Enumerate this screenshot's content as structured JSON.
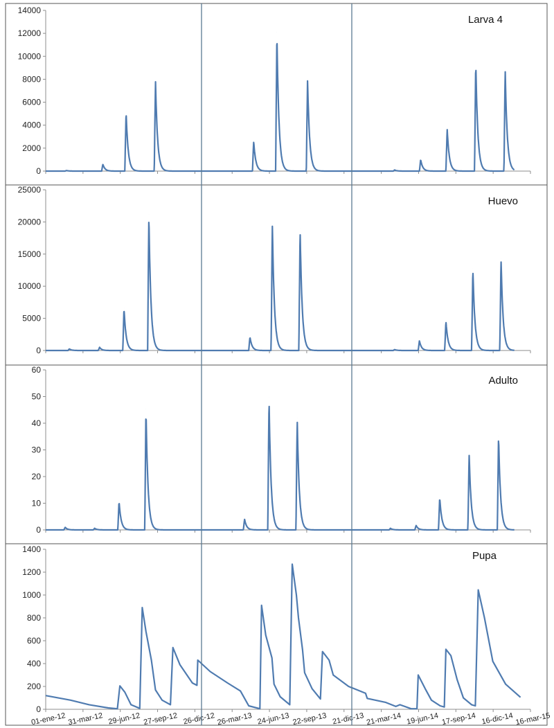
{
  "chart_data": [
    {
      "type": "line",
      "title": "Larva 4",
      "ylim": [
        0,
        14000
      ],
      "yticks": [
        0,
        2000,
        4000,
        6000,
        8000,
        10000,
        12000,
        14000
      ],
      "grid": false,
      "peaks": [
        {
          "x": "2012-02-20",
          "y": 50
        },
        {
          "x": "2012-05-18",
          "y": 600
        },
        {
          "x": "2012-07-13",
          "y": 5200
        },
        {
          "x": "2012-09-22",
          "y": 7900
        },
        {
          "x": "2013-05-17",
          "y": 2600
        },
        {
          "x": "2013-07-12",
          "y": 12100
        },
        {
          "x": "2013-09-24",
          "y": 8000
        },
        {
          "x": "2014-04-22",
          "y": 100
        },
        {
          "x": "2014-06-24",
          "y": 1000
        },
        {
          "x": "2014-08-27",
          "y": 3700
        },
        {
          "x": "2014-11-04",
          "y": 9500
        },
        {
          "x": "2015-01-14",
          "y": 8800
        }
      ]
    },
    {
      "type": "line",
      "title": "Huevo",
      "ylim": [
        0,
        25000
      ],
      "yticks": [
        0,
        5000,
        10000,
        15000,
        20000,
        25000
      ],
      "grid": false,
      "peaks": [
        {
          "x": "2012-02-27",
          "y": 250
        },
        {
          "x": "2012-05-10",
          "y": 500
        },
        {
          "x": "2012-07-08",
          "y": 6600
        },
        {
          "x": "2012-09-06",
          "y": 21200
        },
        {
          "x": "2013-05-08",
          "y": 2100
        },
        {
          "x": "2013-07-01",
          "y": 19800
        },
        {
          "x": "2013-09-06",
          "y": 19000
        },
        {
          "x": "2014-04-22",
          "y": 150
        },
        {
          "x": "2014-06-21",
          "y": 1500
        },
        {
          "x": "2014-08-24",
          "y": 4600
        },
        {
          "x": "2014-10-28",
          "y": 12800
        },
        {
          "x": "2015-01-04",
          "y": 14300
        }
      ]
    },
    {
      "type": "line",
      "title": "Adulto",
      "ylim": [
        0,
        60
      ],
      "yticks": [
        0,
        10,
        20,
        30,
        40,
        50,
        60
      ],
      "grid": false,
      "peaks": [
        {
          "x": "2012-02-17",
          "y": 1
        },
        {
          "x": "2012-04-28",
          "y": 0.6
        },
        {
          "x": "2012-06-26",
          "y": 10.7
        },
        {
          "x": "2012-08-30",
          "y": 45.3
        },
        {
          "x": "2013-04-25",
          "y": 4
        },
        {
          "x": "2013-06-23",
          "y": 49.6
        },
        {
          "x": "2013-08-30",
          "y": 42
        },
        {
          "x": "2014-04-12",
          "y": 0.6
        },
        {
          "x": "2014-06-13",
          "y": 1.7
        },
        {
          "x": "2014-08-09",
          "y": 12.2
        },
        {
          "x": "2014-10-19",
          "y": 28.7
        },
        {
          "x": "2014-12-29",
          "y": 35.3
        }
      ]
    },
    {
      "type": "line",
      "title": "Pupa",
      "ylim": [
        0,
        1400
      ],
      "yticks": [
        0,
        200,
        400,
        600,
        800,
        1000,
        1200,
        1400
      ],
      "grid": false,
      "xticks": [
        "01-ene-12",
        "31-mar-12",
        "29-jun-12",
        "27-sep-12",
        "26-dic-12",
        "26-mar-13",
        "24-jun-13",
        "22-sep-13",
        "21-dic-13",
        "21-mar-14",
        "19-jun-14",
        "17-sep-14",
        "16-dic-14",
        "16-mar-15"
      ],
      "series": [
        {
          "points": [
            [
              "2012-01-01",
              120
            ],
            [
              "2012-03-01",
              80
            ],
            [
              "2012-04-15",
              40
            ],
            [
              "2012-05-31",
              12
            ],
            [
              "2012-06-22",
              5
            ],
            [
              "2012-06-28",
              205
            ],
            [
              "2012-07-10",
              150
            ],
            [
              "2012-07-25",
              40
            ],
            [
              "2012-08-15",
              8
            ],
            [
              "2012-08-21",
              890
            ],
            [
              "2012-08-30",
              680
            ],
            [
              "2012-09-12",
              430
            ],
            [
              "2012-09-22",
              170
            ],
            [
              "2012-10-08",
              80
            ],
            [
              "2012-10-28",
              40
            ],
            [
              "2012-11-03",
              540
            ],
            [
              "2012-11-20",
              390
            ],
            [
              "2012-12-20",
              230
            ],
            [
              "2012-12-31",
              210
            ],
            [
              "2013-01-02",
              430
            ],
            [
              "2013-02-01",
              330
            ],
            [
              "2013-03-15",
              230
            ],
            [
              "2013-04-15",
              160
            ],
            [
              "2013-05-05",
              30
            ],
            [
              "2013-06-01",
              5
            ],
            [
              "2013-06-05",
              910
            ],
            [
              "2013-06-15",
              650
            ],
            [
              "2013-06-30",
              450
            ],
            [
              "2013-07-05",
              220
            ],
            [
              "2013-07-20",
              110
            ],
            [
              "2013-08-12",
              40
            ],
            [
              "2013-08-18",
              1270
            ],
            [
              "2013-08-28",
              1000
            ],
            [
              "2013-09-02",
              800
            ],
            [
              "2013-09-12",
              520
            ],
            [
              "2013-09-17",
              320
            ],
            [
              "2013-10-05",
              180
            ],
            [
              "2013-10-25",
              90
            ],
            [
              "2013-10-30",
              505
            ],
            [
              "2013-11-15",
              430
            ],
            [
              "2013-11-25",
              300
            ],
            [
              "2014-01-01",
              200
            ],
            [
              "2014-02-11",
              140
            ],
            [
              "2014-02-15",
              95
            ],
            [
              "2014-04-01",
              60
            ],
            [
              "2014-04-25",
              25
            ],
            [
              "2014-05-05",
              40
            ],
            [
              "2014-06-01",
              5
            ],
            [
              "2014-06-15",
              5
            ],
            [
              "2014-06-18",
              300
            ],
            [
              "2014-07-05",
              180
            ],
            [
              "2014-07-20",
              80
            ],
            [
              "2014-08-10",
              30
            ],
            [
              "2014-08-20",
              20
            ],
            [
              "2014-08-24",
              525
            ],
            [
              "2014-09-05",
              470
            ],
            [
              "2014-09-20",
              260
            ],
            [
              "2014-10-05",
              100
            ],
            [
              "2014-10-25",
              40
            ],
            [
              "2014-11-03",
              30
            ],
            [
              "2014-11-10",
              1045
            ],
            [
              "2014-11-25",
              800
            ],
            [
              "2014-12-15",
              420
            ],
            [
              "2015-01-15",
              220
            ],
            [
              "2015-02-20",
              105
            ]
          ]
        }
      ]
    }
  ]
}
